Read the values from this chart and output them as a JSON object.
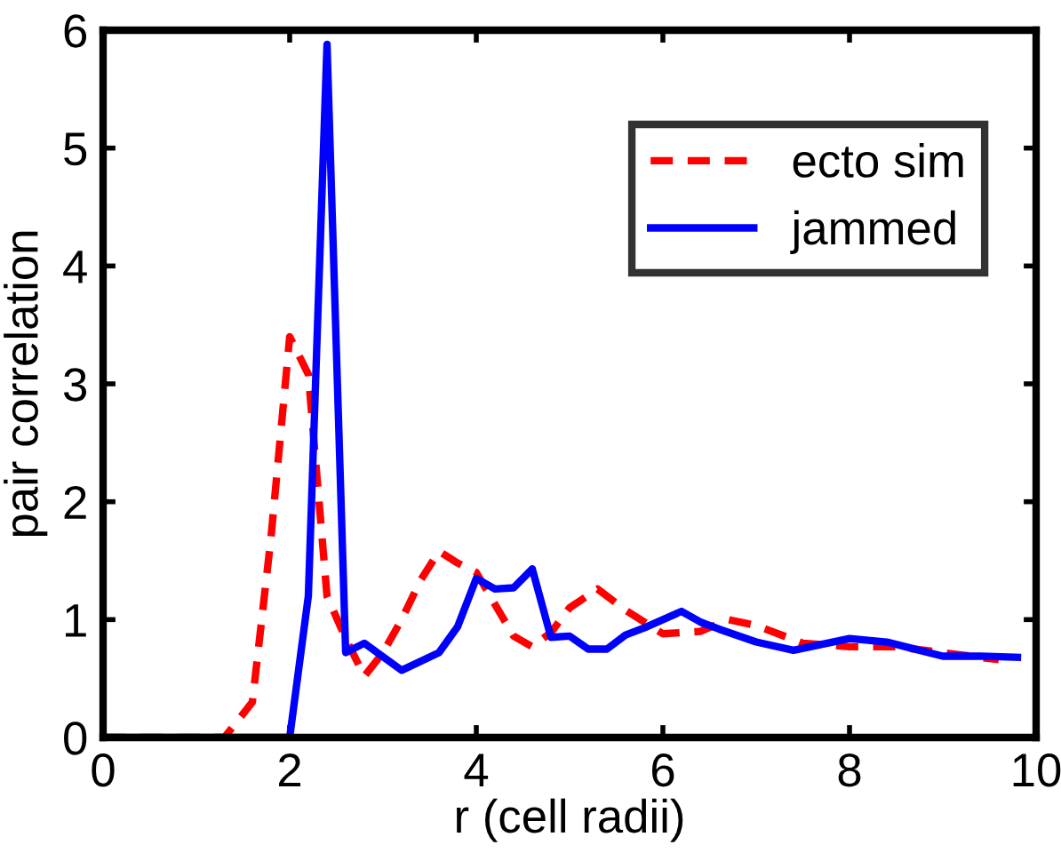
{
  "chart_data": {
    "type": "line",
    "xlabel": "r (cell radii)",
    "ylabel": "pair correlation",
    "xlim": [
      0,
      10
    ],
    "ylim": [
      0,
      6
    ],
    "xticks": [
      0,
      2,
      4,
      6,
      8,
      10
    ],
    "yticks": [
      0,
      1,
      2,
      3,
      4,
      5,
      6
    ],
    "grid": false,
    "legend": "top right",
    "marker": "none",
    "series": [
      {
        "name": "ecto sim",
        "color": "#ff0000",
        "line_style": "dashed",
        "x": [
          0,
          1.3,
          1.6,
          1.8,
          2.0,
          2.2,
          2.4,
          2.6,
          2.8,
          3.0,
          3.2,
          3.4,
          3.6,
          3.8,
          4.0,
          4.4,
          4.6,
          4.8,
          5.0,
          5.3,
          5.6,
          6.0,
          6.4,
          6.7,
          7.0,
          7.5,
          8.0,
          8.5,
          9.0,
          9.6
        ],
        "values": [
          0,
          0,
          0.3,
          1.7,
          3.4,
          3.08,
          1.2,
          0.84,
          0.52,
          0.72,
          1.0,
          1.33,
          1.58,
          1.48,
          1.4,
          0.86,
          0.77,
          0.89,
          1.1,
          1.26,
          1.08,
          0.88,
          0.9,
          1.0,
          0.95,
          0.8,
          0.77,
          0.77,
          0.72,
          0.66
        ]
      },
      {
        "name": "jammed",
        "color": "#0000ff",
        "line_style": "solid",
        "x": [
          0,
          2.0,
          2.2,
          2.4,
          2.6,
          2.8,
          3.2,
          3.6,
          3.8,
          4.0,
          4.2,
          4.4,
          4.6,
          4.8,
          5.0,
          5.2,
          5.4,
          5.6,
          5.8,
          6.2,
          6.4,
          6.6,
          7.0,
          7.4,
          8.0,
          8.4,
          9.0,
          9.4,
          9.8
        ],
        "values": [
          0,
          0,
          1.2,
          5.88,
          0.72,
          0.8,
          0.57,
          0.72,
          0.94,
          1.35,
          1.26,
          1.27,
          1.43,
          0.85,
          0.86,
          0.75,
          0.75,
          0.87,
          0.93,
          1.07,
          0.98,
          0.92,
          0.81,
          0.74,
          0.84,
          0.81,
          0.69,
          0.69,
          0.68
        ]
      }
    ]
  }
}
